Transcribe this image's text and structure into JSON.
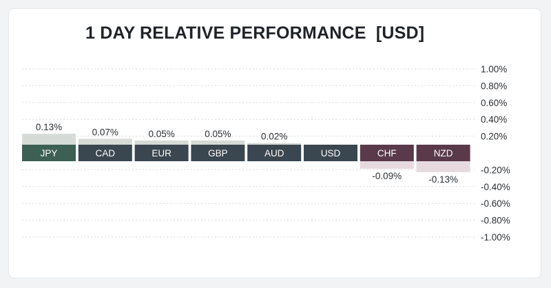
{
  "chart_data": {
    "type": "bar",
    "title": "1 DAY RELATIVE PERFORMANCE  [USD]",
    "categories": [
      "JPY",
      "CAD",
      "EUR",
      "GBP",
      "AUD",
      "USD",
      "CHF",
      "NZD"
    ],
    "values": [
      0.13,
      0.07,
      0.05,
      0.05,
      0.02,
      0.0,
      -0.09,
      -0.13
    ],
    "value_labels": [
      "0.13%",
      "0.07%",
      "0.05%",
      "0.05%",
      "0.02%",
      "",
      "-0.09%",
      "-0.13%"
    ],
    "ylim": [
      -1.0,
      1.0
    ],
    "y_ticks": [
      {
        "value": 1.0,
        "label": "1.00%"
      },
      {
        "value": 0.8,
        "label": "0.80%"
      },
      {
        "value": 0.6,
        "label": "0.60%"
      },
      {
        "value": 0.4,
        "label": "0.40%"
      },
      {
        "value": 0.2,
        "label": "0.20%"
      },
      {
        "value": -0.2,
        "label": "-0.20%"
      },
      {
        "value": -0.4,
        "label": "-0.40%"
      },
      {
        "value": -0.6,
        "label": "-0.60%"
      },
      {
        "value": -0.8,
        "label": "-0.80%"
      },
      {
        "value": -1.0,
        "label": "-1.00%"
      }
    ],
    "grid": true,
    "y_axis_position": "right",
    "colors": {
      "label_box_positive": "#2e4a43",
      "label_box_top": "#3d5f54",
      "label_box_neutral": "#3a4650",
      "label_box_negative": "#5a3a4a",
      "bar_positive": "#d6dbd8",
      "bar_negative": "#e6dadf",
      "gridline": "#d8dadc"
    }
  }
}
